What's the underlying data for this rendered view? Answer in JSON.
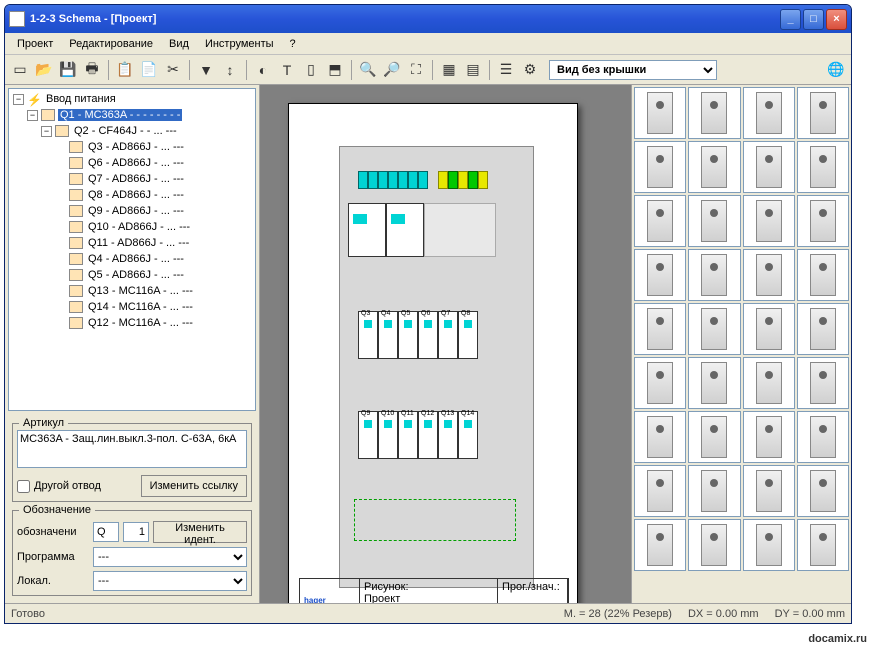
{
  "window": {
    "title": "1-2-3 Schema - [Проект]",
    "min_icon": "_",
    "max_icon": "□",
    "close_icon": "×"
  },
  "menu": {
    "items": [
      "Проект",
      "Редактирование",
      "Вид",
      "Инструменты",
      "?"
    ]
  },
  "toolbar": {
    "view_dropdown": "Вид без крышки"
  },
  "tree": {
    "root": {
      "label": "Ввод питания",
      "exp": "−",
      "children": [
        {
          "label": "Q1 - MC363A - - - - - - - -",
          "selected": true,
          "exp": "−",
          "children": [
            {
              "label": "Q2 - CF464J - - ... ---",
              "exp": "−",
              "children": [
                {
                  "label": "Q3 - AD866J - ... ---"
                },
                {
                  "label": "Q6 - AD866J - ... ---"
                },
                {
                  "label": "Q7 - AD866J - ... ---"
                },
                {
                  "label": "Q8 - AD866J - ... ---"
                },
                {
                  "label": "Q9 - AD866J - ... ---"
                },
                {
                  "label": "Q10 - AD866J - ... ---"
                },
                {
                  "label": "Q11 - AD866J - ... ---"
                },
                {
                  "label": "Q4 - AD866J - ... ---"
                },
                {
                  "label": "Q5 - AD866J - ... ---"
                },
                {
                  "label": "Q13 - MC116A - ... ---"
                },
                {
                  "label": "Q14 - MC116A - ... ---"
                },
                {
                  "label": "Q12 - MC116A - ... ---"
                }
              ]
            }
          ]
        }
      ]
    }
  },
  "props": {
    "article_legend": "Артикул",
    "article_text": "MC363A - Защ.лин.выкл.3-пол. C-63A, 6кА",
    "other_terminal": "Другой отвод",
    "change_link": "Изменить ссылку",
    "designation_legend": "Обозначение",
    "desig_label": "обозначени",
    "desig_letter": "Q",
    "desig_number": "1",
    "change_ident": "Изменить идент.",
    "program_label": "Программа",
    "program_value": "---",
    "local_label": "Локал.",
    "local_value": "---"
  },
  "canvas": {
    "row2_labels": [
      "Q3",
      "Q4",
      "Q5",
      "Q6",
      "Q7",
      "Q8"
    ],
    "row3_labels": [
      "Q9",
      "Q10",
      "Q11",
      "Q12",
      "Q13",
      "Q14"
    ],
    "titleblock": {
      "logo": "hager",
      "col1_a": "Рисунок:",
      "col1_b": "Проект",
      "col2_a": "Прог./знач.:"
    }
  },
  "palette": {
    "item_count": 36
  },
  "status": {
    "ready": "Готово",
    "modules": "M. = 28 (22% Резерв)",
    "dx": "DX = 0.00 mm",
    "dy": "DY = 0.00 mm"
  },
  "watermark": "docamix.ru",
  "colors": {
    "titlebar_grad_top": "#3a6ee2",
    "titlebar_grad_bot": "#1d4fc9",
    "chrome_bg": "#ece9d8",
    "selection": "#316ac5",
    "canvas_bg": "#808080",
    "border": "#7f9db9"
  }
}
